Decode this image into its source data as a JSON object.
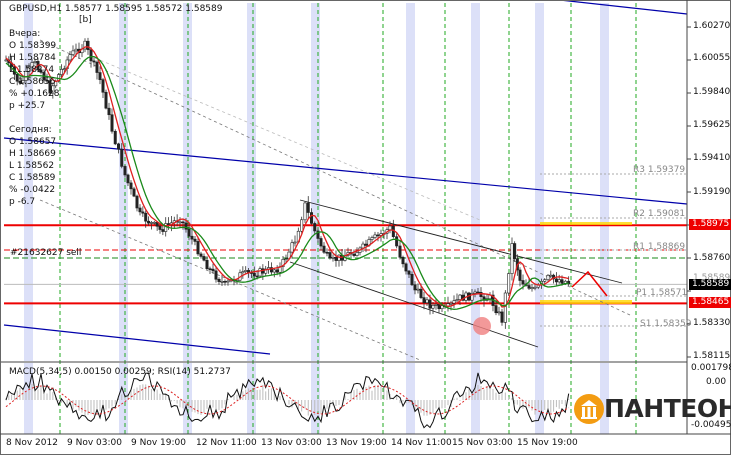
{
  "header": {
    "symbol_line": "GBPUSD,H1  1.58577 1.58595 1.58572 1.58589",
    "badge": "[b]"
  },
  "info_panel": {
    "yesterday_title": "Вчера:",
    "yesterday": [
      "O 1.58399",
      "H 1.58784",
      "L 1.58274",
      "C 1.58656",
      "% +0.1628",
      "p +25.7"
    ],
    "today_title": "Сегодня:",
    "today": [
      "O 1.58657",
      "H 1.58669",
      "L 1.58562",
      "C 1.58589",
      "% -0.0422",
      "p -6.7"
    ]
  },
  "price_axis": {
    "ticks": [
      "1.60270",
      "1.60055",
      "1.59840",
      "1.59625",
      "1.59410",
      "1.59190",
      "1.58975",
      "1.58760",
      "1.58545",
      "1.58330",
      "1.58115"
    ],
    "current_price": "1.58589",
    "highlighted_upper": "1.58975",
    "highlighted_lower": "1.58465",
    "obscured_label": "1.58589"
  },
  "pivots": {
    "r3": "R3 1.59379",
    "r2": "R2 1.59081",
    "r1": "R1 1.58869",
    "p1": "P1 1.58571",
    "s1": "S1 1.58359"
  },
  "order_label": "#21632627 sell",
  "indicator": {
    "title": "MACD(5,34,5) 0.00150 0.00259; RSI(14) 51.2737",
    "ticks": [
      "0.001798",
      "0.00",
      "-0.00495"
    ]
  },
  "time_axis": [
    "8 Nov 2012",
    "9 Nov 03:00",
    "9 Nov 19:00",
    "12 Nov 11:00",
    "13 Nov 03:00",
    "13 Nov 19:00",
    "14 Nov 11:00",
    "15 Nov 03:00",
    "15 Nov 19:00"
  ],
  "logo": {
    "text": "ПАНТЕОН"
  },
  "colors": {
    "ma_fast": "#e02020",
    "ma_slow": "#1a8a1a",
    "support_resistance": "#ee0000",
    "channel": "#0000aa",
    "session_band": "#dce0f8",
    "grid": "#22aa22",
    "pivot_fill": "#ffd700",
    "logo_orange": "#f39c12"
  }
}
